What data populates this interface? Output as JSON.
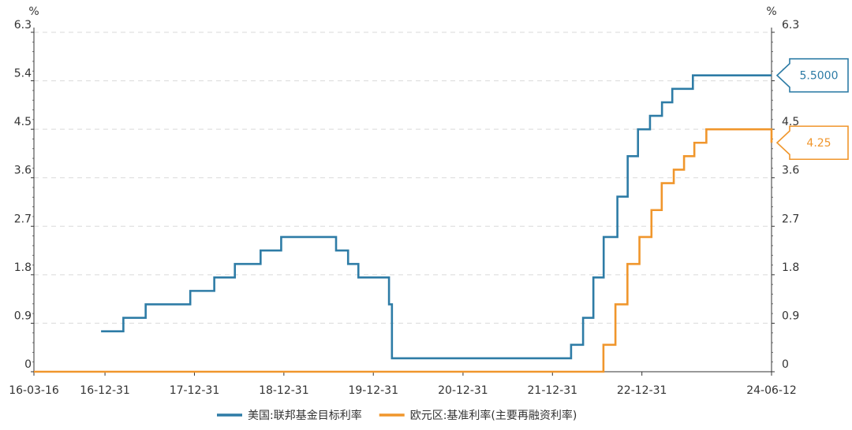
{
  "chart_data": {
    "type": "line",
    "unit_left": "%",
    "unit_right": "%",
    "x_range": [
      "2016-03-16",
      "2024-06-12"
    ],
    "x_ticks": [
      {
        "label": "16-03-16",
        "date": "2016-03-16"
      },
      {
        "label": "16-12-31",
        "date": "2016-12-31"
      },
      {
        "label": "17-12-31",
        "date": "2017-12-31"
      },
      {
        "label": "18-12-31",
        "date": "2018-12-31"
      },
      {
        "label": "19-12-31",
        "date": "2019-12-31"
      },
      {
        "label": "20-12-31",
        "date": "2020-12-31"
      },
      {
        "label": "21-12-31",
        "date": "2021-12-31"
      },
      {
        "label": "22-12-31",
        "date": "2022-12-31"
      },
      {
        "label": "24-06-12",
        "date": "2024-06-12"
      }
    ],
    "y_range": [
      0,
      6.3
    ],
    "y_ticks": [
      "0",
      "0.9",
      "1.8",
      "2.7",
      "3.6",
      "4.5",
      "5.4",
      "6.3"
    ],
    "grid": true,
    "legend_position": "bottom",
    "series": [
      {
        "name": "美国:联邦基金目标利率",
        "color": "#2e7ca6",
        "step": true,
        "end_label": "5.5000",
        "points": [
          [
            "2016-12-15",
            0.75
          ],
          [
            "2017-03-16",
            1.0
          ],
          [
            "2017-06-15",
            1.25
          ],
          [
            "2017-12-14",
            1.5
          ],
          [
            "2018-03-22",
            1.75
          ],
          [
            "2018-06-14",
            2.0
          ],
          [
            "2018-09-27",
            2.25
          ],
          [
            "2018-12-20",
            2.5
          ],
          [
            "2019-08-01",
            2.25
          ],
          [
            "2019-09-19",
            2.0
          ],
          [
            "2019-10-31",
            1.75
          ],
          [
            "2020-03-04",
            1.25
          ],
          [
            "2020-03-16",
            0.25
          ],
          [
            "2022-03-17",
            0.5
          ],
          [
            "2022-05-05",
            1.0
          ],
          [
            "2022-06-16",
            1.75
          ],
          [
            "2022-07-28",
            2.5
          ],
          [
            "2022-09-22",
            3.25
          ],
          [
            "2022-11-03",
            4.0
          ],
          [
            "2022-12-15",
            4.5
          ],
          [
            "2023-02-02",
            4.75
          ],
          [
            "2023-03-23",
            5.0
          ],
          [
            "2023-05-04",
            5.25
          ],
          [
            "2023-07-27",
            5.5
          ],
          [
            "2024-06-12",
            5.5
          ]
        ]
      },
      {
        "name": "欧元区:基准利率(主要再融资利率)",
        "color": "#f0962c",
        "step": true,
        "end_label": "4.25",
        "points": [
          [
            "2016-03-16",
            0.0
          ],
          [
            "2022-07-27",
            0.5
          ],
          [
            "2022-09-14",
            1.25
          ],
          [
            "2022-11-02",
            2.0
          ],
          [
            "2022-12-21",
            2.5
          ],
          [
            "2023-02-08",
            3.0
          ],
          [
            "2023-03-22",
            3.5
          ],
          [
            "2023-05-10",
            3.75
          ],
          [
            "2023-06-21",
            4.0
          ],
          [
            "2023-08-02",
            4.25
          ],
          [
            "2023-09-20",
            4.5
          ],
          [
            "2024-06-12",
            4.25
          ]
        ]
      }
    ]
  }
}
